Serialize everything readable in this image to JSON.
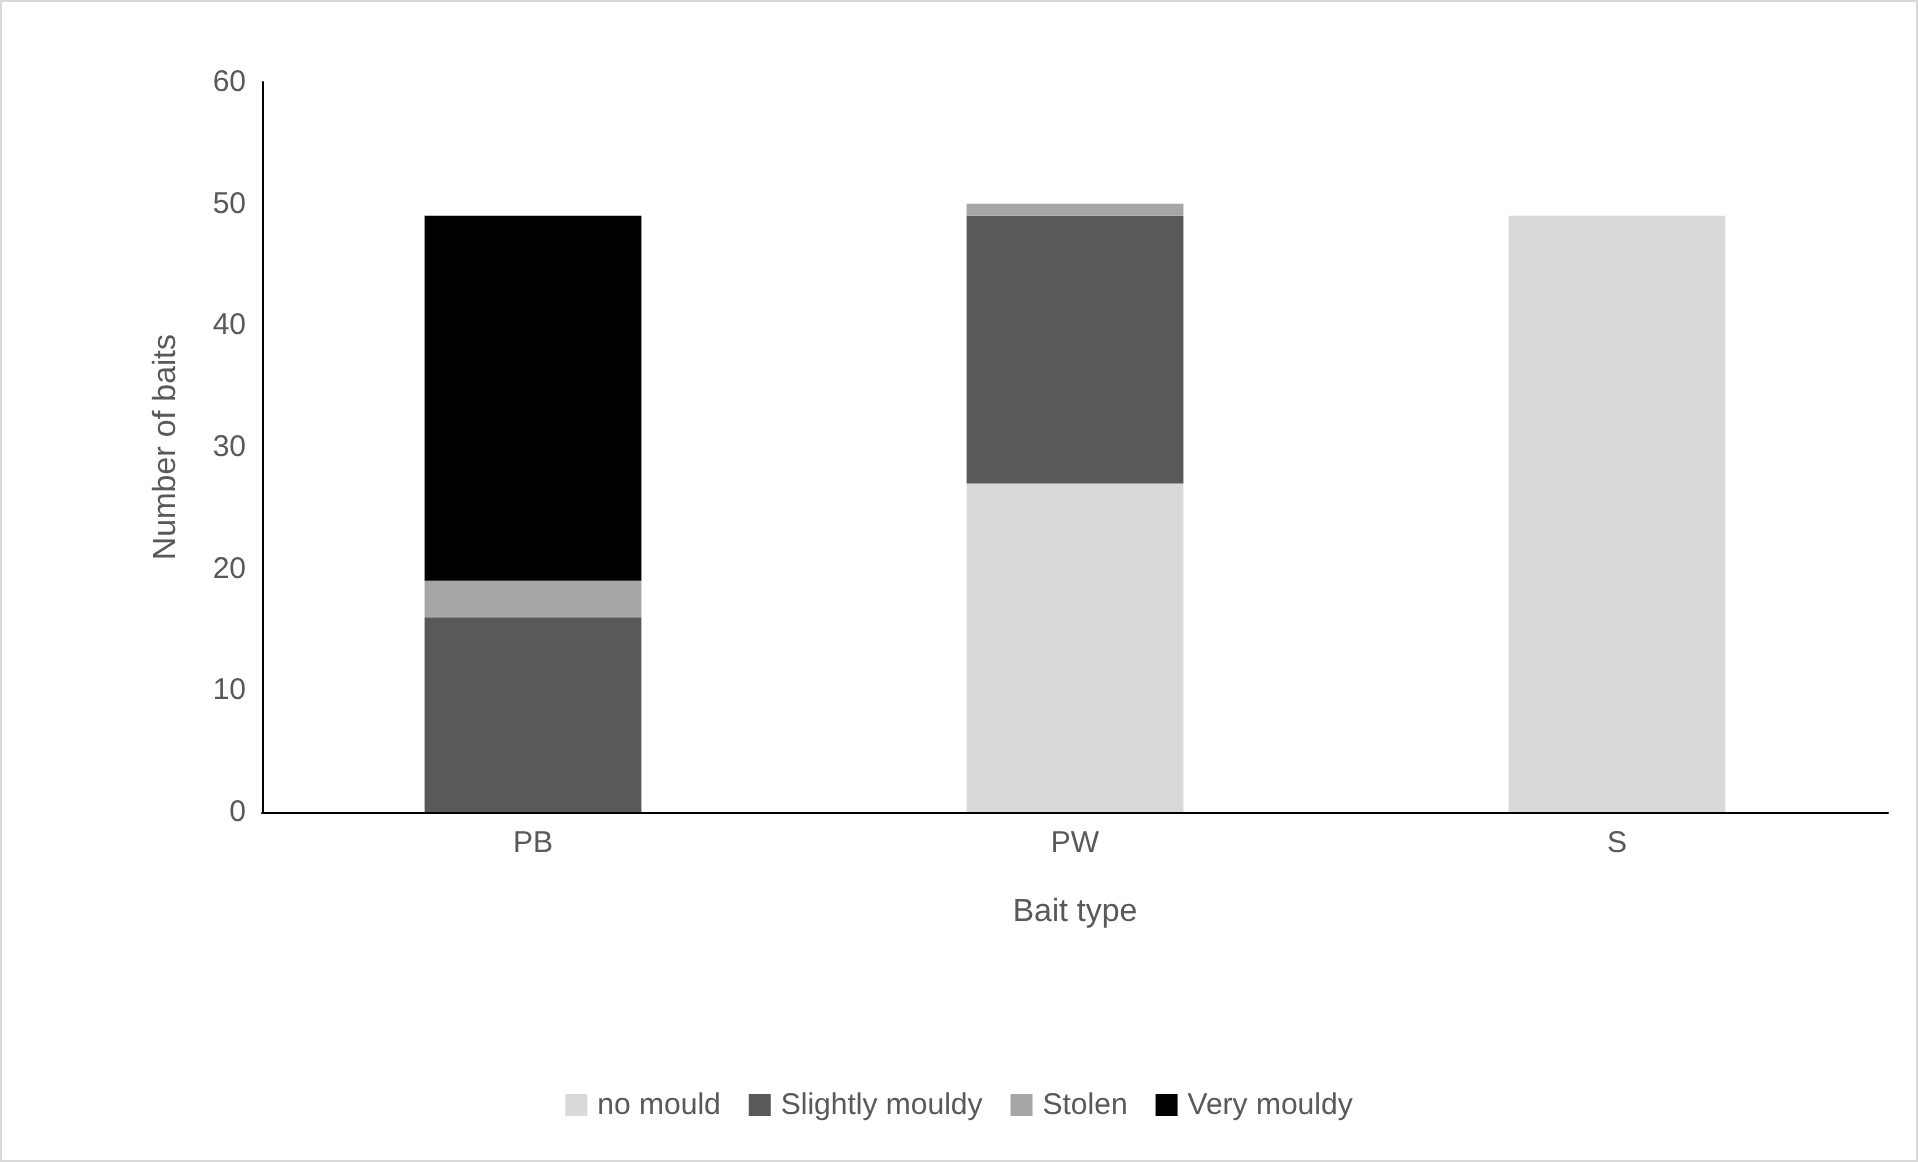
{
  "chart_data": {
    "type": "bar",
    "stacked": true,
    "xlabel": "Bait type",
    "ylabel": "Number of baits",
    "categories": [
      "PB",
      "PW",
      "S"
    ],
    "series": [
      {
        "name": "no mould",
        "color": "#d9d9d9",
        "values": [
          0,
          27,
          49
        ]
      },
      {
        "name": "Slightly mouldy",
        "color": "#595959",
        "values": [
          16,
          22,
          0
        ]
      },
      {
        "name": "Stolen",
        "color": "#a6a6a6",
        "values": [
          3,
          1,
          0
        ]
      },
      {
        "name": "Very mouldy",
        "color": "#000000",
        "values": [
          30,
          0,
          0
        ]
      }
    ],
    "ylim": [
      0,
      60
    ],
    "yticks": [
      0,
      10,
      20,
      30,
      40,
      50,
      60
    ],
    "grid": false,
    "legend": "bottom"
  }
}
